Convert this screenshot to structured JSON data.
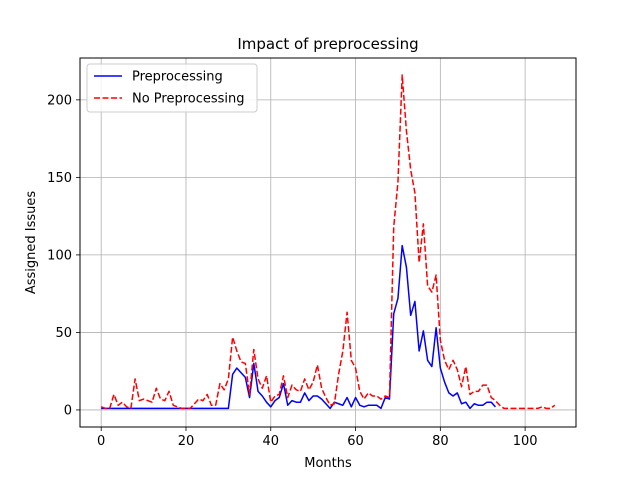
{
  "chart_data": {
    "type": "line",
    "title": "Impact of preprocessing",
    "xlabel": "Months",
    "ylabel": "Assigned Issues",
    "xlim": [
      -5,
      112
    ],
    "ylim": [
      -11,
      227
    ],
    "xticks": [
      0,
      20,
      40,
      60,
      80,
      100
    ],
    "yticks": [
      0,
      50,
      100,
      150,
      200
    ],
    "grid": true,
    "legend_placement": "top-left",
    "series": [
      {
        "name": "Preprocessing",
        "color": "#0000ff",
        "style": "solid",
        "x": [
          0,
          1,
          2,
          3,
          4,
          5,
          6,
          7,
          8,
          9,
          10,
          11,
          12,
          13,
          14,
          15,
          16,
          17,
          18,
          19,
          20,
          21,
          22,
          23,
          24,
          25,
          26,
          27,
          28,
          29,
          30,
          31,
          32,
          33,
          34,
          35,
          36,
          37,
          38,
          39,
          40,
          41,
          42,
          43,
          44,
          45,
          46,
          47,
          48,
          49,
          50,
          51,
          52,
          53,
          54,
          55,
          56,
          57,
          58,
          59,
          60,
          61,
          62,
          63,
          64,
          65,
          66,
          67,
          68,
          69,
          70,
          71,
          72,
          73,
          74,
          75,
          76,
          77,
          78,
          79,
          80,
          81,
          82,
          83,
          84,
          85,
          86,
          87,
          88,
          89,
          90,
          91,
          92,
          93
        ],
        "y": [
          1,
          1,
          1,
          1,
          1,
          1,
          1,
          1,
          1,
          1,
          1,
          1,
          1,
          1,
          1,
          1,
          1,
          1,
          1,
          1,
          1,
          1,
          1,
          1,
          1,
          1,
          1,
          1,
          1,
          1,
          1,
          23,
          27,
          24,
          21,
          8,
          30,
          12,
          9,
          5,
          2,
          6,
          8,
          17,
          3,
          6,
          5,
          5,
          11,
          6,
          9,
          9,
          7,
          4,
          1,
          5,
          4,
          3,
          8,
          2,
          8,
          3,
          2,
          3,
          3,
          3,
          1,
          8,
          7,
          62,
          72,
          106,
          92,
          61,
          70,
          38,
          51,
          32,
          28,
          53,
          27,
          18,
          11,
          9,
          11,
          4,
          5,
          1,
          4,
          3,
          3,
          5,
          5,
          2
        ]
      },
      {
        "name": "No Preprocessing",
        "color": "#ff0000",
        "style": "dashed",
        "x": [
          0,
          1,
          2,
          3,
          4,
          5,
          6,
          7,
          8,
          9,
          10,
          11,
          12,
          13,
          14,
          15,
          16,
          17,
          18,
          19,
          20,
          21,
          22,
          23,
          24,
          25,
          26,
          27,
          28,
          29,
          30,
          31,
          32,
          33,
          34,
          35,
          36,
          37,
          38,
          39,
          40,
          41,
          42,
          43,
          44,
          45,
          46,
          47,
          48,
          49,
          50,
          51,
          52,
          53,
          54,
          55,
          56,
          57,
          58,
          59,
          60,
          61,
          62,
          63,
          64,
          65,
          66,
          67,
          68,
          69,
          70,
          71,
          72,
          73,
          74,
          75,
          76,
          77,
          78,
          79,
          80,
          81,
          82,
          83,
          84,
          85,
          86,
          87,
          88,
          89,
          90,
          91,
          92,
          93,
          94,
          95,
          96,
          97,
          98,
          99,
          100,
          101,
          102,
          103,
          104,
          105,
          106,
          107
        ],
        "y": [
          2,
          1,
          1,
          10,
          3,
          5,
          2,
          1,
          20,
          6,
          7,
          6,
          5,
          14,
          7,
          6,
          12,
          3,
          2,
          1,
          1,
          1,
          4,
          7,
          6,
          10,
          3,
          3,
          17,
          13,
          20,
          47,
          38,
          31,
          30,
          10,
          39,
          20,
          14,
          22,
          5,
          9,
          10,
          22,
          8,
          16,
          13,
          12,
          20,
          13,
          18,
          29,
          14,
          8,
          3,
          4,
          23,
          38,
          63,
          32,
          27,
          12,
          7,
          11,
          9,
          9,
          7,
          9,
          8,
          118,
          147,
          216,
          180,
          155,
          140,
          95,
          120,
          80,
          76,
          87,
          45,
          32,
          26,
          32,
          26,
          15,
          28,
          10,
          12,
          12,
          16,
          16,
          8,
          6,
          3,
          1,
          1,
          1,
          1,
          1,
          1,
          1,
          1,
          1,
          2,
          1,
          1,
          3
        ]
      }
    ]
  }
}
